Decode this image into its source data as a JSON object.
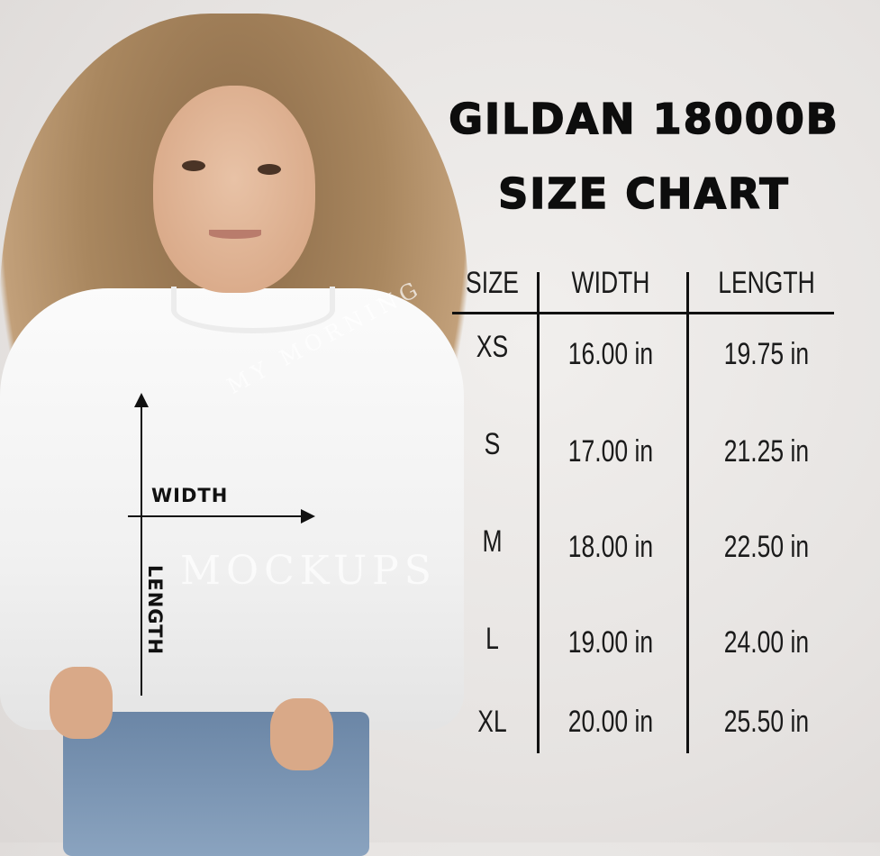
{
  "title_line1": "GILDAN 18000B",
  "title_line2": "SIZE CHART",
  "garment_labels": {
    "width": "WIDTH",
    "length": "LENGTH"
  },
  "watermark": {
    "top": "MY MORNING",
    "bottom": "MOCKUPS"
  },
  "table": {
    "headers": [
      "SIZE",
      "WIDTH",
      "LENGTH"
    ],
    "rows": [
      {
        "size": "XS",
        "width": "16.00 in",
        "length": "19.75 in"
      },
      {
        "size": "S",
        "width": "17.00 in",
        "length": "21.25 in"
      },
      {
        "size": "M",
        "width": "18.00 in",
        "length": "22.50 in"
      },
      {
        "size": "L",
        "width": "19.00 in",
        "length": "24.00 in"
      },
      {
        "size": "XL",
        "width": "20.00 in",
        "length": "25.50 in"
      }
    ]
  },
  "colors": {
    "background": "#e9e6e4",
    "text": "#111111",
    "garment": "#f5f5f5"
  }
}
